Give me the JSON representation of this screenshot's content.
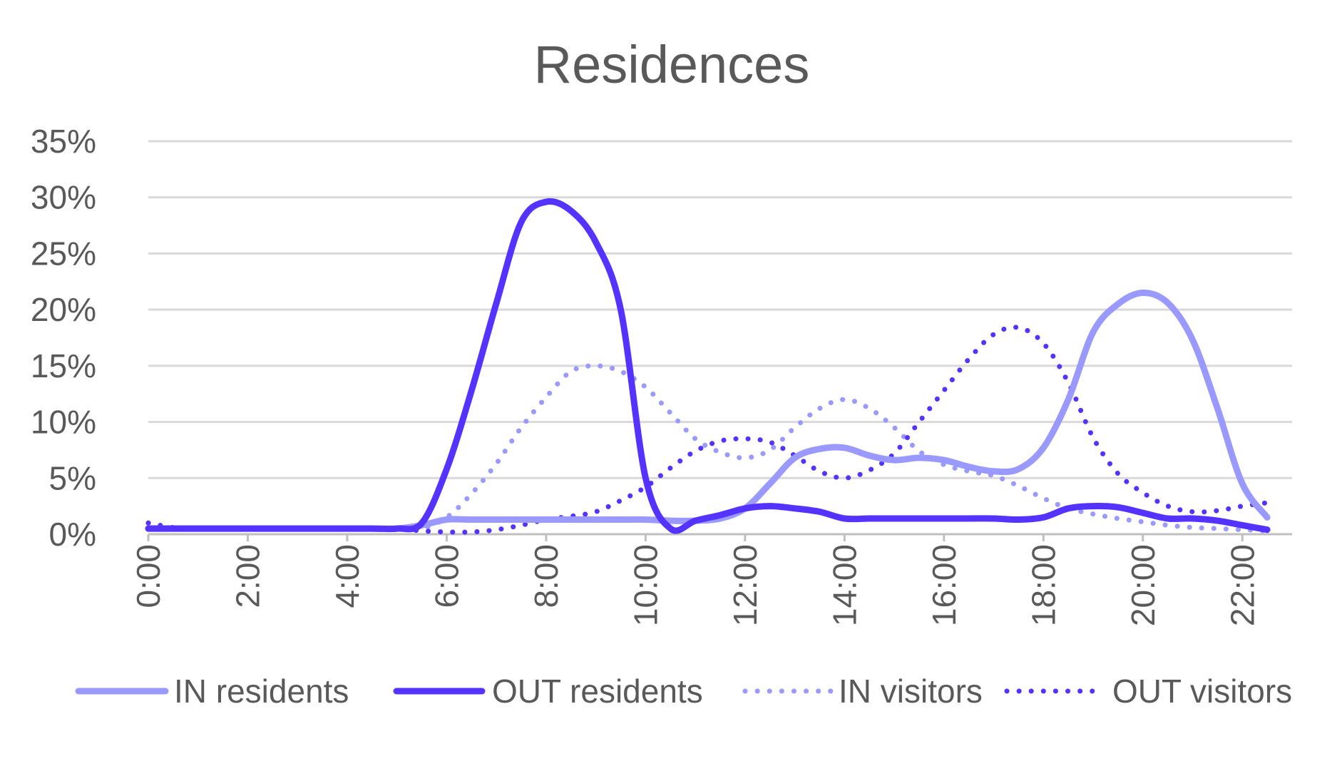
{
  "chart_data": {
    "type": "line",
    "title": "Residences",
    "xlabel": "",
    "ylabel": "",
    "ylim": [
      0,
      35
    ],
    "y_ticks": [
      "0%",
      "5%",
      "10%",
      "15%",
      "20%",
      "25%",
      "30%",
      "35%"
    ],
    "x_tick_labels": [
      "0:00",
      "2:00",
      "4:00",
      "6:00",
      "8:00",
      "10:00",
      "12:00",
      "14:00",
      "16:00",
      "18:00",
      "20:00",
      "22:00"
    ],
    "x_hours": [
      0,
      0.5,
      1,
      1.5,
      2,
      2.5,
      3,
      3.5,
      4,
      4.5,
      5,
      5.5,
      6,
      6.5,
      7,
      7.5,
      8,
      8.5,
      9,
      9.5,
      10,
      10.5,
      11,
      11.5,
      12,
      12.5,
      13,
      13.5,
      14,
      14.5,
      15,
      15.5,
      16,
      16.5,
      17,
      17.5,
      18,
      18.5,
      19,
      19.5,
      20,
      20.5,
      21,
      21.5,
      22,
      22.5
    ],
    "grid": true,
    "legend_position": "bottom",
    "series": [
      {
        "name": "IN residents",
        "color": "#9999ff",
        "style": "solid",
        "values": [
          0.5,
          0.5,
          0.5,
          0.5,
          0.5,
          0.5,
          0.5,
          0.5,
          0.5,
          0.5,
          0.5,
          0.8,
          1.3,
          1.3,
          1.3,
          1.3,
          1.3,
          1.3,
          1.3,
          1.3,
          1.3,
          1.2,
          1.2,
          1.4,
          2.3,
          4.5,
          6.8,
          7.6,
          7.7,
          7.0,
          6.6,
          6.8,
          6.6,
          6.0,
          5.6,
          5.8,
          7.7,
          12.0,
          18.0,
          20.5,
          21.5,
          20.6,
          17.3,
          11.2,
          4.5,
          1.5
        ]
      },
      {
        "name": "OUT residents",
        "color": "#5533ff",
        "style": "solid",
        "values": [
          0.5,
          0.5,
          0.5,
          0.5,
          0.5,
          0.5,
          0.5,
          0.5,
          0.5,
          0.5,
          0.5,
          1.0,
          5.8,
          12.8,
          20.6,
          27.8,
          29.6,
          28.8,
          26.0,
          20.0,
          5.0,
          0.5,
          1.2,
          1.7,
          2.3,
          2.5,
          2.3,
          2.0,
          1.4,
          1.4,
          1.4,
          1.4,
          1.4,
          1.4,
          1.4,
          1.3,
          1.5,
          2.3,
          2.5,
          2.4,
          1.9,
          1.4,
          1.4,
          1.2,
          0.8,
          0.4
        ]
      },
      {
        "name": "IN visitors",
        "color": "#9999ff",
        "style": "dotted",
        "values": [
          1.0,
          0.5,
          0.5,
          0.5,
          0.5,
          0.5,
          0.5,
          0.5,
          0.5,
          0.5,
          0.5,
          0.5,
          1.5,
          3.6,
          6.3,
          9.5,
          12.2,
          14.5,
          15.0,
          14.5,
          13.1,
          10.8,
          8.5,
          7.3,
          6.8,
          7.5,
          9.5,
          11.2,
          12.0,
          11.2,
          9.5,
          7.4,
          6.2,
          5.6,
          5.2,
          4.3,
          3.2,
          2.3,
          1.8,
          1.4,
          1.1,
          0.8,
          0.6,
          0.5,
          0.4,
          0.3
        ]
      },
      {
        "name": "OUT visitors",
        "color": "#5533ff",
        "style": "dotted",
        "values": [
          1.0,
          0.6,
          0.5,
          0.5,
          0.5,
          0.5,
          0.5,
          0.5,
          0.5,
          0.5,
          0.5,
          0.3,
          0.2,
          0.2,
          0.4,
          0.8,
          1.3,
          1.6,
          2.0,
          3.0,
          4.2,
          5.9,
          7.4,
          8.3,
          8.5,
          8.2,
          7.0,
          5.6,
          5.0,
          5.7,
          7.2,
          10.0,
          12.8,
          15.6,
          17.8,
          18.4,
          17.0,
          13.5,
          8.6,
          5.4,
          3.7,
          2.5,
          2.0,
          2.1,
          2.5,
          2.8
        ]
      }
    ]
  }
}
